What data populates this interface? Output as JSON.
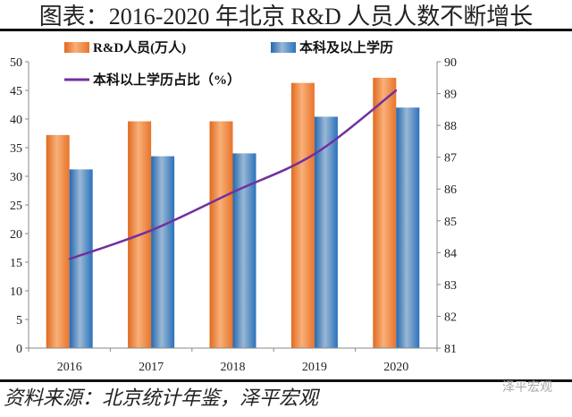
{
  "title": "图表：2016-2020 年北京 R&D 人员人数不断增长",
  "source": "资料来源：北京统计年鉴，泽平宏观",
  "watermark": "泽平宏观",
  "chart_data": {
    "type": "bar+line",
    "categories": [
      "2016",
      "2017",
      "2018",
      "2019",
      "2020"
    ],
    "series": [
      {
        "name": "R&D人员(万人)",
        "type": "bar",
        "axis": "left",
        "color": "#ED7D31",
        "values": [
          37.2,
          39.6,
          39.6,
          46.3,
          47.2
        ]
      },
      {
        "name": "本科及以上学历",
        "type": "bar",
        "axis": "left",
        "color": "#2E75B6",
        "values": [
          31.2,
          33.5,
          34.0,
          40.4,
          42.0
        ]
      },
      {
        "name": "本科以上学历占比（%）",
        "type": "line",
        "axis": "right",
        "color": "#7030A0",
        "values": [
          83.8,
          84.7,
          85.9,
          87.1,
          89.1
        ]
      }
    ],
    "left_axis": {
      "range": [
        0,
        50
      ],
      "ticks": [
        "0",
        "5",
        "10",
        "15",
        "20",
        "25",
        "30",
        "35",
        "40",
        "45",
        "50"
      ]
    },
    "right_axis": {
      "range": [
        81,
        90
      ],
      "ticks": [
        "81",
        "82",
        "83",
        "84",
        "85",
        "86",
        "87",
        "88",
        "89",
        "90"
      ]
    },
    "grid": false,
    "legend": "top"
  }
}
